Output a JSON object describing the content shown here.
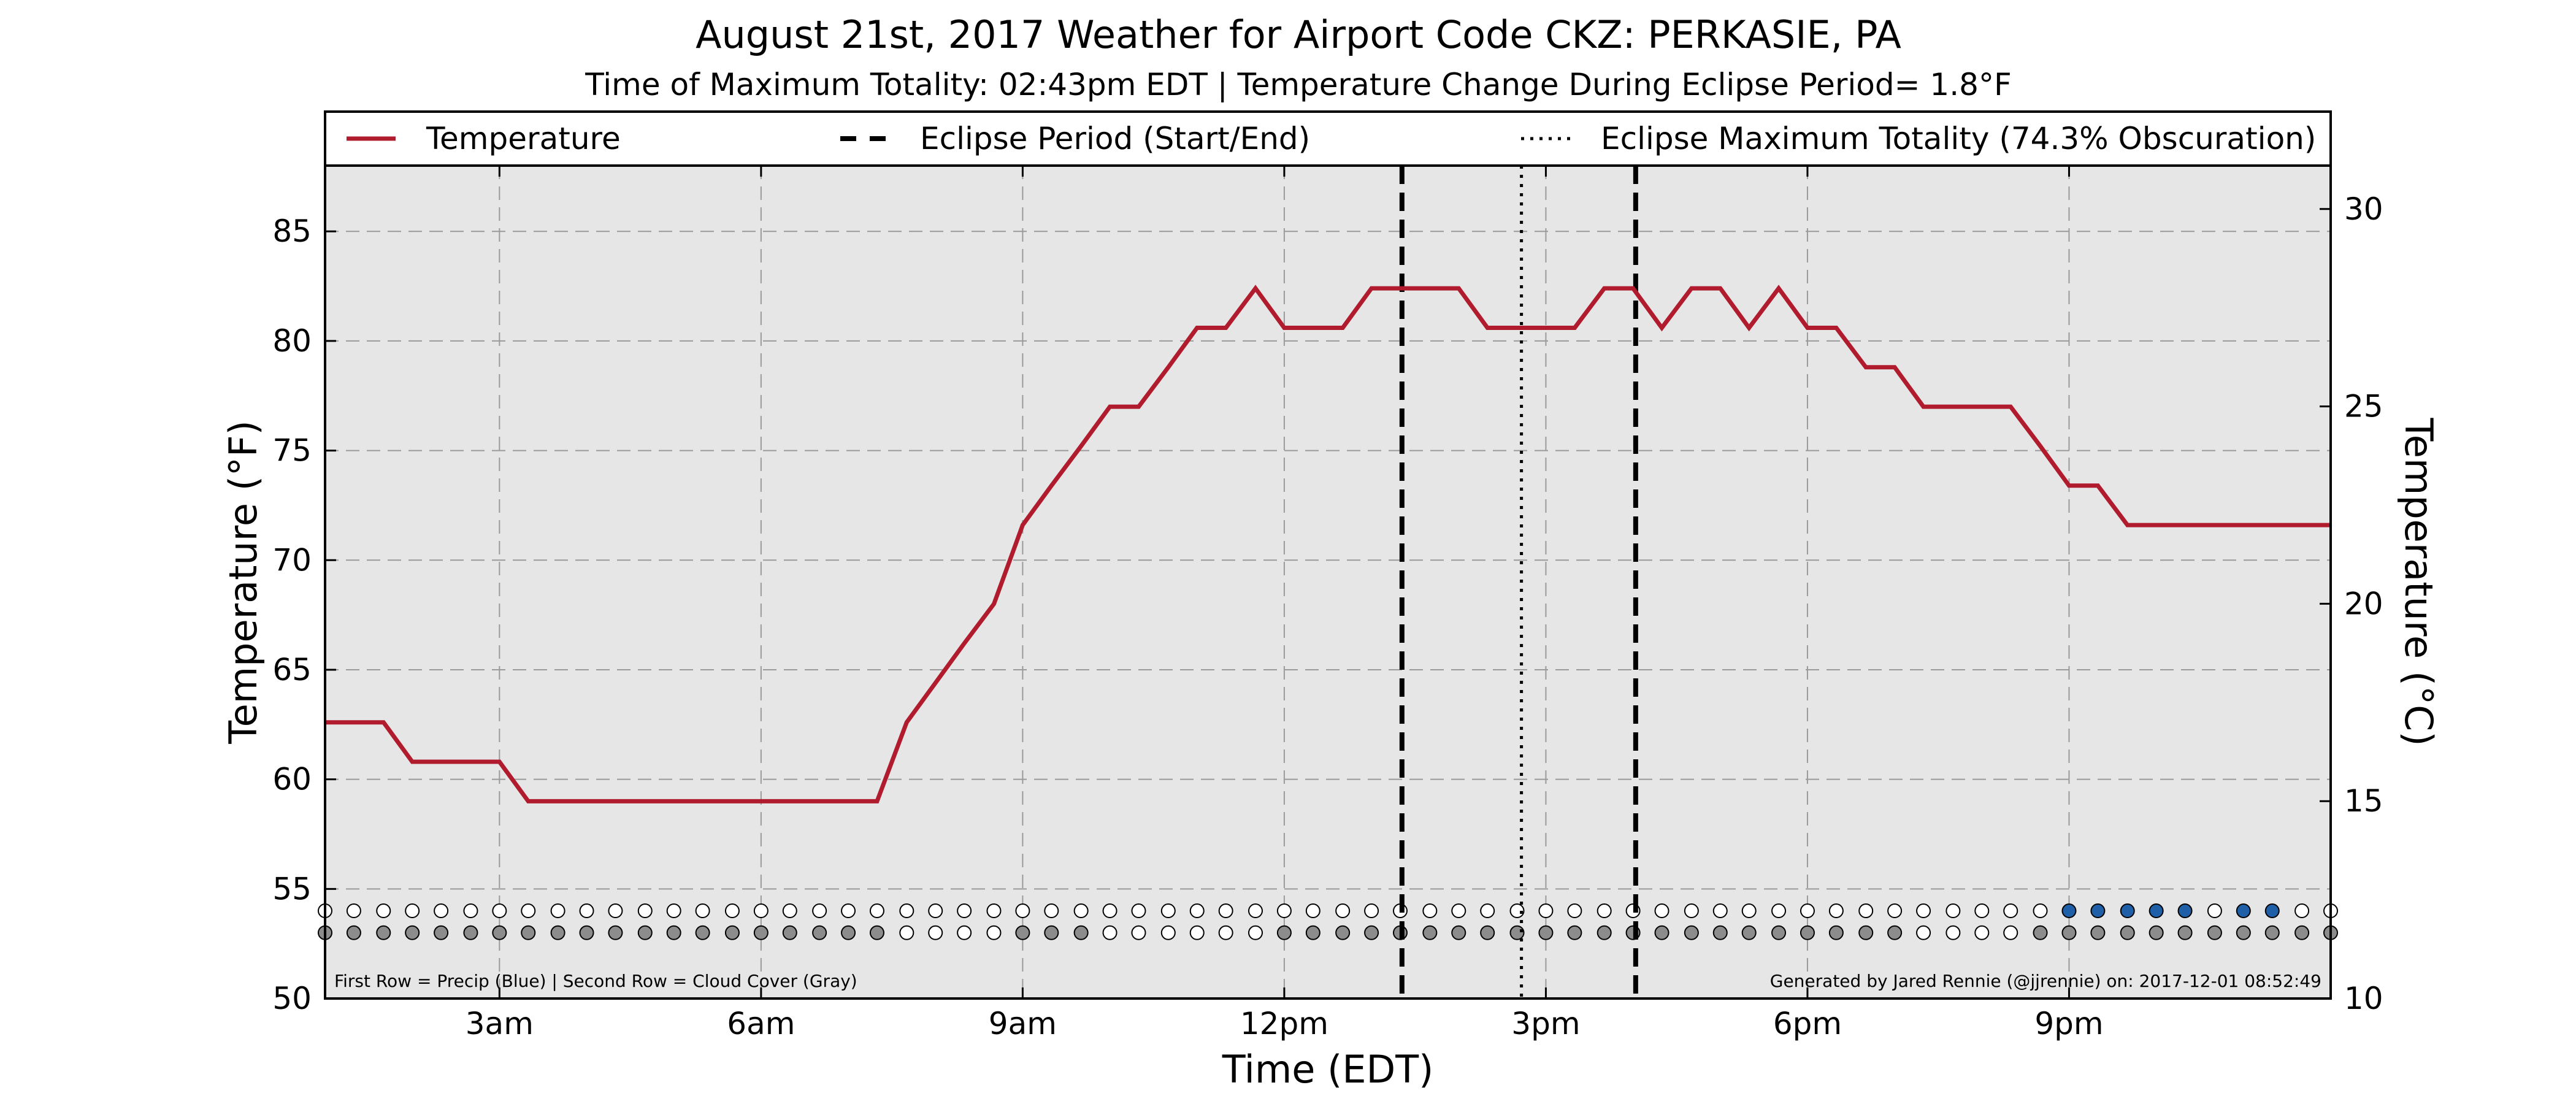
{
  "chart_data": {
    "type": "line",
    "title": "August 21st, 2017 Weather for Airport Code CKZ: PERKASIE, PA",
    "subtitle": "Time of Maximum Totality: 02:43pm EDT | Temperature Change During Eclipse Period= 1.8°F",
    "xlabel": "Time (EDT)",
    "ylabel": "Temperature (°F)",
    "ylabel_right": "Temperature (°C)",
    "xlim": [
      1.0,
      24.0
    ],
    "ylim": [
      50,
      88
    ],
    "ylim_right": [
      10,
      31.1
    ],
    "x_ticks": [
      {
        "x": 3,
        "label": "3am"
      },
      {
        "x": 6,
        "label": "6am"
      },
      {
        "x": 9,
        "label": "9am"
      },
      {
        "x": 12,
        "label": "12pm"
      },
      {
        "x": 15,
        "label": "3pm"
      },
      {
        "x": 18,
        "label": "6pm"
      },
      {
        "x": 21,
        "label": "9pm"
      }
    ],
    "y_ticks": [
      50,
      55,
      60,
      65,
      70,
      75,
      80,
      85
    ],
    "y_ticks_right": [
      10,
      15,
      20,
      25,
      30
    ],
    "grid": true,
    "legend": {
      "placement": "top",
      "entries": [
        {
          "label": "Temperature",
          "style": "solid"
        },
        {
          "label": "Eclipse Period (Start/End)",
          "style": "dashed"
        },
        {
          "label": "Eclipse Maximum Totality (74.3% Obscuration)",
          "style": "dotted"
        }
      ]
    },
    "series": [
      {
        "name": "Temperature",
        "color": "#b01c2e",
        "x": [
          1.0,
          1.33,
          1.67,
          2.0,
          2.33,
          2.67,
          3.0,
          3.33,
          3.67,
          4.0,
          4.33,
          4.67,
          5.0,
          5.33,
          5.67,
          6.0,
          6.33,
          6.67,
          7.0,
          7.33,
          7.67,
          8.0,
          8.33,
          8.67,
          9.0,
          9.33,
          9.67,
          10.0,
          10.33,
          10.67,
          11.0,
          11.33,
          11.67,
          12.0,
          12.33,
          12.67,
          13.0,
          13.33,
          13.67,
          14.0,
          14.33,
          14.67,
          15.0,
          15.33,
          15.67,
          16.0,
          16.33,
          16.67,
          17.0,
          17.33,
          17.67,
          18.0,
          18.33,
          18.67,
          19.0,
          19.33,
          19.67,
          20.0,
          20.33,
          20.67,
          21.0,
          21.33,
          21.67,
          22.0,
          22.33,
          22.67,
          23.0,
          23.33,
          23.67,
          24.0
        ],
        "values": [
          62.6,
          62.6,
          62.6,
          60.8,
          60.8,
          60.8,
          60.8,
          59.0,
          59.0,
          59.0,
          59.0,
          59.0,
          59.0,
          59.0,
          59.0,
          59.0,
          59.0,
          59.0,
          59.0,
          59.0,
          62.6,
          64.4,
          66.2,
          68.0,
          71.6,
          73.4,
          75.2,
          77.0,
          77.0,
          78.8,
          80.6,
          80.6,
          82.4,
          80.6,
          80.6,
          80.6,
          82.4,
          82.4,
          82.4,
          82.4,
          80.6,
          80.6,
          80.6,
          80.6,
          82.4,
          82.4,
          80.6,
          82.4,
          82.4,
          80.6,
          82.4,
          80.6,
          80.6,
          78.8,
          78.8,
          77.0,
          77.0,
          77.0,
          77.0,
          75.2,
          73.4,
          73.4,
          71.6,
          71.6,
          71.6,
          71.6,
          71.6,
          71.6,
          71.6,
          71.6
        ]
      }
    ],
    "eclipse_lines": [
      {
        "label": "Eclipse Period (Start/End)",
        "x": 13.35,
        "style": "dashed"
      },
      {
        "label": "Eclipse Maximum Totality (74.3% Obscuration)",
        "x": 14.72,
        "style": "dotted"
      },
      {
        "label": "Eclipse Period (Start/End)",
        "x": 16.03,
        "style": "dashed"
      }
    ],
    "indicator_rows": {
      "x": [
        1.0,
        1.33,
        1.67,
        2.0,
        2.33,
        2.67,
        3.0,
        3.33,
        3.67,
        4.0,
        4.33,
        4.67,
        5.0,
        5.33,
        5.67,
        6.0,
        6.33,
        6.67,
        7.0,
        7.33,
        7.67,
        8.0,
        8.33,
        8.67,
        9.0,
        9.33,
        9.67,
        10.0,
        10.33,
        10.67,
        11.0,
        11.33,
        11.67,
        12.0,
        12.33,
        12.67,
        13.0,
        13.33,
        13.67,
        14.0,
        14.33,
        14.67,
        15.0,
        15.33,
        15.67,
        16.0,
        16.33,
        16.67,
        17.0,
        17.33,
        17.67,
        18.0,
        18.33,
        18.67,
        19.0,
        19.33,
        19.67,
        20.0,
        20.33,
        20.67,
        21.0,
        21.33,
        21.67,
        22.0,
        22.33,
        22.67,
        23.0,
        23.33,
        23.67,
        24.0
      ],
      "precip_y": 54.0,
      "cloud_y": 53.0,
      "precip_color": "#1f5fa8",
      "cloud_color": "#8c8c8c",
      "precip": [
        0,
        0,
        0,
        0,
        0,
        0,
        0,
        0,
        0,
        0,
        0,
        0,
        0,
        0,
        0,
        0,
        0,
        0,
        0,
        0,
        0,
        0,
        0,
        0,
        0,
        0,
        0,
        0,
        0,
        0,
        0,
        0,
        0,
        0,
        0,
        0,
        0,
        0,
        0,
        0,
        0,
        0,
        0,
        0,
        0,
        0,
        0,
        0,
        0,
        0,
        0,
        0,
        0,
        0,
        0,
        0,
        0,
        0,
        0,
        0,
        1,
        1,
        1,
        1,
        1,
        0,
        1,
        1,
        0,
        0
      ],
      "cloud": [
        1,
        1,
        1,
        1,
        1,
        1,
        1,
        1,
        1,
        1,
        1,
        1,
        1,
        1,
        1,
        1,
        1,
        1,
        1,
        1,
        0,
        0,
        0,
        0,
        1,
        1,
        1,
        0,
        0,
        0,
        0,
        0,
        0,
        1,
        1,
        1,
        1,
        1,
        1,
        1,
        1,
        1,
        1,
        1,
        1,
        1,
        1,
        1,
        1,
        1,
        1,
        1,
        1,
        1,
        1,
        0,
        0,
        0,
        0,
        1,
        1,
        1,
        1,
        1,
        1,
        1,
        1,
        1,
        1,
        1
      ]
    },
    "footnote_left": "First Row = Precip (Blue) | Second Row = Cloud Cover (Gray)",
    "footnote_right": "Generated by Jared Rennie (@jjrennie) on: 2017-12-01 08:52:49"
  }
}
